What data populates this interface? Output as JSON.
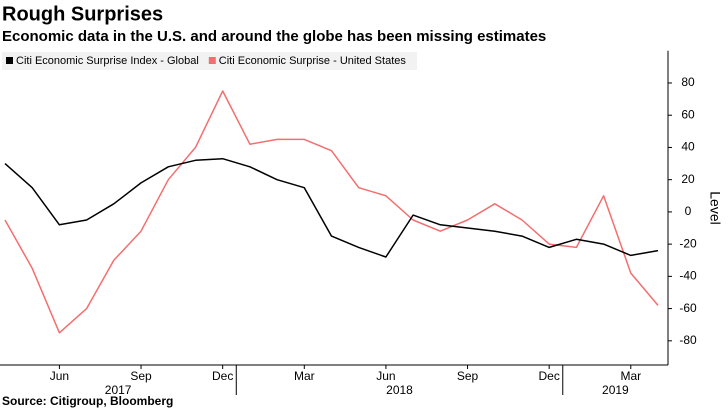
{
  "chart_data": {
    "type": "line",
    "title": "Rough Surprises",
    "subtitle": "Economic data in the U.S. and around the globe has been missing estimates",
    "source": "Source: Citigroup, Bloomberg",
    "y_label": "Level",
    "x": [
      "2017-04",
      "2017-05",
      "2017-06",
      "2017-07",
      "2017-08",
      "2017-09",
      "2017-10",
      "2017-11",
      "2017-12",
      "2018-01",
      "2018-02",
      "2018-03",
      "2018-04",
      "2018-05",
      "2018-06",
      "2018-07",
      "2018-08",
      "2018-09",
      "2018-10",
      "2018-11",
      "2018-12",
      "2019-01",
      "2019-02",
      "2019-03",
      "2019-04"
    ],
    "series": [
      {
        "name": "Citi Economic Surprise Index - Global",
        "color": "#000000",
        "values": [
          30,
          15,
          -8,
          -5,
          5,
          18,
          28,
          32,
          33,
          28,
          20,
          15,
          -15,
          -22,
          -28,
          -2,
          -8,
          -10,
          -12,
          -15,
          -22,
          -17,
          -20,
          -27,
          -24
        ]
      },
      {
        "name": "Citi Economic Surprise - United States",
        "color": "#f36f6f",
        "values": [
          -5,
          -35,
          -75,
          -60,
          -30,
          -12,
          20,
          40,
          75,
          42,
          45,
          45,
          38,
          15,
          10,
          -5,
          -12,
          -5,
          5,
          -5,
          -20,
          -22,
          10,
          -38,
          -58
        ]
      }
    ],
    "xlim": [
      "2017-04",
      "2019-04"
    ],
    "xticks": [
      {
        "value": "2017-06",
        "label": "Jun"
      },
      {
        "value": "2017-09",
        "label": "Sep"
      },
      {
        "value": "2017-12",
        "label": "Dec"
      },
      {
        "value": "2018-03",
        "label": "Mar"
      },
      {
        "value": "2018-06",
        "label": "Jun"
      },
      {
        "value": "2018-09",
        "label": "Sep"
      },
      {
        "value": "2018-12",
        "label": "Dec"
      },
      {
        "value": "2019-03",
        "label": "Mar"
      }
    ],
    "year_labels": [
      "2017",
      "2018",
      "2019"
    ],
    "ylim": [
      -95,
      100
    ],
    "yticks": [
      -80,
      -60,
      -40,
      -20,
      0,
      20,
      40,
      60,
      80
    ],
    "grid": false,
    "legend": "top-left"
  }
}
